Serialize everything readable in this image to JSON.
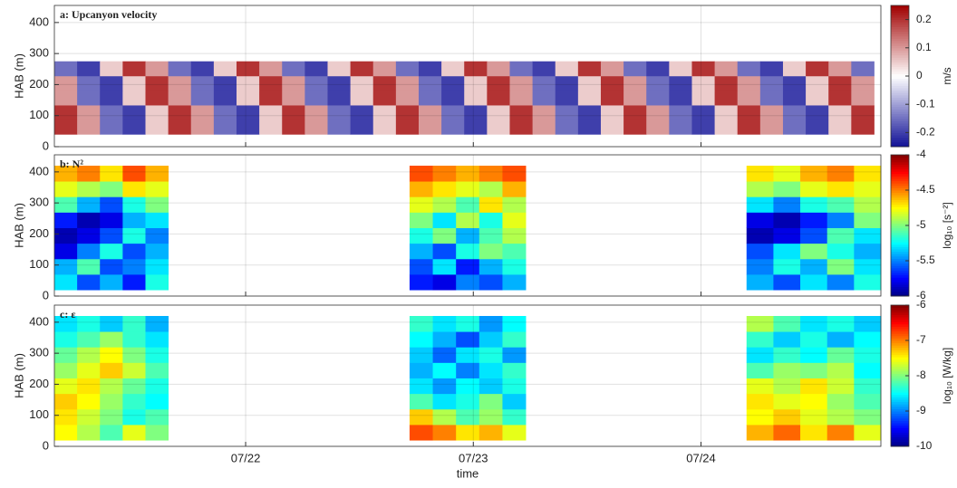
{
  "chart_data": [
    {
      "type": "heatmap",
      "title": "a: Upcanyon velocity",
      "ylabel": "HAB (m)",
      "xlim": [
        21.16,
        24.79
      ],
      "xticks": [
        22,
        23,
        24
      ],
      "ylim": [
        0,
        455
      ],
      "yticks": [
        0,
        100,
        200,
        300,
        400
      ],
      "grid": true,
      "x_edges": [
        21.16,
        21.26,
        21.36,
        21.46,
        21.56,
        21.66,
        21.76,
        21.86,
        21.96,
        22.06,
        22.16,
        22.26,
        22.36,
        22.46,
        22.56,
        22.66,
        22.76,
        22.86,
        22.96,
        23.06,
        23.16,
        23.26,
        23.36,
        23.46,
        23.56,
        23.66,
        23.76,
        23.86,
        23.96,
        24.06,
        24.16,
        24.26,
        24.36,
        24.46,
        24.56,
        24.66,
        24.76
      ],
      "y_edges": [
        40,
        87,
        134,
        181,
        228,
        275
      ],
      "z": [
        [
          0.2,
          0.1,
          -0.15,
          -0.2,
          0.05,
          0.2,
          0.1,
          -0.15,
          -0.2,
          0.05,
          0.2,
          0.1,
          -0.15,
          -0.2,
          0.05,
          0.2,
          0.1,
          -0.15,
          -0.2,
          0.05,
          0.2,
          0.1,
          -0.15,
          -0.2,
          0.05,
          0.2,
          0.1,
          -0.15,
          -0.2,
          0.05,
          0.2,
          0.1,
          -0.15,
          -0.2,
          0.05,
          0.2
        ],
        [
          0.2,
          0.1,
          -0.15,
          -0.2,
          0.05,
          0.2,
          0.1,
          -0.15,
          -0.2,
          0.05,
          0.2,
          0.1,
          -0.15,
          -0.2,
          0.05,
          0.2,
          0.1,
          -0.15,
          -0.2,
          0.05,
          0.2,
          0.1,
          -0.15,
          -0.2,
          0.05,
          0.2,
          0.1,
          -0.15,
          -0.2,
          0.05,
          0.2,
          0.1,
          -0.15,
          -0.2,
          0.05,
          0.2
        ],
        [
          0.1,
          -0.15,
          -0.2,
          0.05,
          0.2,
          0.1,
          -0.15,
          -0.2,
          0.05,
          0.2,
          0.1,
          -0.15,
          -0.2,
          0.05,
          0.2,
          0.1,
          -0.15,
          -0.2,
          0.05,
          0.2,
          0.1,
          -0.15,
          -0.2,
          0.05,
          0.2,
          0.1,
          -0.15,
          -0.2,
          0.05,
          0.2,
          0.1,
          -0.15,
          -0.2,
          0.05,
          0.2,
          0.1
        ],
        [
          0.1,
          -0.15,
          -0.2,
          0.05,
          0.2,
          0.1,
          -0.15,
          -0.2,
          0.05,
          0.2,
          0.1,
          -0.15,
          -0.2,
          0.05,
          0.2,
          0.1,
          -0.15,
          -0.2,
          0.05,
          0.2,
          0.1,
          -0.15,
          -0.2,
          0.05,
          0.2,
          0.1,
          -0.15,
          -0.2,
          0.05,
          0.2,
          0.1,
          -0.15,
          -0.2,
          0.05,
          0.2,
          0.1
        ],
        [
          -0.15,
          -0.2,
          0.05,
          0.2,
          0.1,
          -0.15,
          -0.2,
          0.05,
          0.2,
          0.1,
          -0.15,
          -0.2,
          0.05,
          0.2,
          0.1,
          -0.15,
          -0.2,
          0.05,
          0.2,
          0.1,
          -0.15,
          -0.2,
          0.05,
          0.2,
          0.1,
          -0.15,
          -0.2,
          0.05,
          0.2,
          0.1,
          -0.15,
          -0.2,
          0.05,
          0.2,
          0.1,
          -0.15
        ]
      ],
      "colorbar": {
        "label": "m/s",
        "colormap": "bwr",
        "zlim": [
          -0.25,
          0.25
        ],
        "zticks": [
          0.2,
          0.1,
          0,
          -0.1,
          -0.2
        ]
      }
    },
    {
      "type": "heatmap",
      "title": "b: N²",
      "ylabel": "HAB (m)",
      "xlim": [
        21.16,
        24.79
      ],
      "xticks": [
        22,
        23,
        24
      ],
      "ylim": [
        0,
        455
      ],
      "yticks": [
        0,
        100,
        200,
        300,
        400
      ],
      "grid": true,
      "x_edges": [
        21.16,
        21.26,
        21.36,
        21.46,
        21.56,
        21.66,
        22.72,
        22.822,
        22.924,
        23.026,
        23.128,
        23.23,
        24.2,
        24.318,
        24.436,
        24.554,
        24.672,
        24.79
      ],
      "y_edges": [
        20,
        70,
        120,
        170,
        220,
        270,
        320,
        370,
        420
      ],
      "z": [
        [
          -5.3,
          -5.6,
          -5.4,
          -5.7,
          -5.2,
          null,
          -5.7,
          -5.8,
          -5.5,
          -5.6,
          -5.4,
          null,
          -5.4,
          -5.6,
          -5.3,
          -5.5,
          -5.2
        ],
        [
          -5.4,
          -5.1,
          -5.6,
          -5.5,
          -5.3,
          null,
          -5.6,
          -5.3,
          -5.7,
          -5.4,
          -5.2,
          null,
          -5.5,
          -5.2,
          -5.4,
          -5.0,
          -5.3
        ],
        [
          -5.8,
          -5.5,
          -5.2,
          -5.6,
          -5.4,
          null,
          -5.4,
          -5.6,
          -5.2,
          -5.0,
          -5.1,
          null,
          -5.6,
          -5.3,
          -5.0,
          -5.2,
          -5.4
        ],
        [
          -5.9,
          -5.8,
          -5.6,
          -5.2,
          -5.5,
          null,
          -5.2,
          -5.0,
          -5.4,
          -5.1,
          -4.9,
          null,
          -5.9,
          -5.8,
          -5.6,
          -5.1,
          -5.3
        ],
        [
          -5.7,
          -5.9,
          -5.8,
          -5.4,
          -5.3,
          null,
          -5.0,
          -5.3,
          -4.9,
          -5.2,
          -4.8,
          null,
          -5.8,
          -5.9,
          -5.7,
          -5.5,
          -5.0
        ],
        [
          -5.1,
          -5.4,
          -5.6,
          -5.2,
          -5.0,
          null,
          -4.8,
          -4.9,
          -5.1,
          -4.7,
          -4.9,
          null,
          -5.3,
          -5.5,
          -5.2,
          -5.1,
          -4.9
        ],
        [
          -4.8,
          -4.9,
          -5.0,
          -4.7,
          -4.8,
          null,
          -4.6,
          -4.7,
          -4.8,
          -4.9,
          -4.6,
          null,
          -4.9,
          -5.0,
          -4.8,
          -4.7,
          -4.8
        ],
        [
          -4.6,
          -4.5,
          -4.7,
          -4.4,
          -4.6,
          null,
          -4.4,
          -4.5,
          -4.6,
          -4.5,
          -4.4,
          null,
          -4.7,
          -4.8,
          -4.6,
          -4.5,
          -4.7
        ]
      ],
      "colorbar": {
        "label": "log₁₀ [s⁻²]",
        "colormap": "jet",
        "zlim": [
          -6,
          -4
        ],
        "zticks": [
          -4,
          -4.5,
          -5,
          -5.5,
          -6
        ]
      }
    },
    {
      "type": "heatmap",
      "title": "c: ε",
      "ylabel": "HAB (m)",
      "xlabel": "time",
      "xlim": [
        21.16,
        24.79
      ],
      "xticks": [
        {
          "value": 22,
          "label": "07/22"
        },
        {
          "value": 23,
          "label": "07/23"
        },
        {
          "value": 24,
          "label": "07/24"
        }
      ],
      "ylim": [
        0,
        455
      ],
      "yticks": [
        0,
        100,
        200,
        300,
        400
      ],
      "grid": true,
      "x_edges": [
        21.16,
        21.26,
        21.36,
        21.46,
        21.56,
        21.66,
        22.72,
        22.822,
        22.924,
        23.026,
        23.128,
        23.23,
        24.2,
        24.318,
        24.436,
        24.554,
        24.672,
        24.79
      ],
      "y_edges": [
        20,
        70,
        120,
        170,
        220,
        270,
        320,
        370,
        420
      ],
      "z": [
        [
          -7.5,
          -7.8,
          -8.2,
          -7.6,
          -8.0,
          null,
          -6.8,
          -7.0,
          -7.4,
          -7.2,
          -7.6,
          null,
          -7.2,
          -6.9,
          -7.4,
          -7.0,
          -7.6
        ],
        [
          -7.4,
          -7.7,
          -8.0,
          -8.4,
          -8.2,
          null,
          -7.3,
          -7.8,
          -8.2,
          -7.9,
          -8.3,
          null,
          -7.5,
          -7.3,
          -7.6,
          -7.8,
          -8.0
        ],
        [
          -7.3,
          -7.5,
          -7.9,
          -8.3,
          -8.5,
          null,
          -8.2,
          -8.6,
          -8.4,
          -8.0,
          -8.7,
          null,
          -7.4,
          -7.6,
          -7.5,
          -7.9,
          -8.2
        ],
        [
          -7.6,
          -7.4,
          -7.8,
          -8.1,
          -8.4,
          null,
          -8.6,
          -8.9,
          -8.5,
          -8.7,
          -8.4,
          null,
          -7.6,
          -7.8,
          -7.4,
          -7.7,
          -8.3
        ],
        [
          -7.9,
          -7.6,
          -7.3,
          -7.7,
          -8.2,
          null,
          -8.8,
          -8.5,
          -9.0,
          -8.6,
          -8.3,
          null,
          -8.2,
          -7.9,
          -8.0,
          -7.8,
          -8.5
        ],
        [
          -8.1,
          -7.8,
          -7.5,
          -8.0,
          -8.4,
          null,
          -8.7,
          -9.1,
          -8.6,
          -8.4,
          -8.9,
          null,
          -8.6,
          -8.3,
          -8.5,
          -8.1,
          -8.4
        ],
        [
          -8.4,
          -8.2,
          -7.9,
          -8.3,
          -8.6,
          null,
          -8.5,
          -8.8,
          -9.2,
          -8.7,
          -8.3,
          null,
          -8.3,
          -8.7,
          -8.4,
          -8.8,
          -8.5
        ],
        [
          -8.6,
          -8.4,
          -8.7,
          -8.3,
          -8.8,
          null,
          -8.3,
          -8.6,
          -8.4,
          -8.9,
          -8.5,
          null,
          -7.8,
          -8.2,
          -8.6,
          -8.4,
          -8.7
        ]
      ],
      "colorbar": {
        "label": "log₁₀ [W/kg]",
        "colormap": "jet",
        "zlim": [
          -10,
          -6
        ],
        "zticks": [
          -6,
          -7,
          -8,
          -9,
          -10
        ]
      }
    }
  ]
}
